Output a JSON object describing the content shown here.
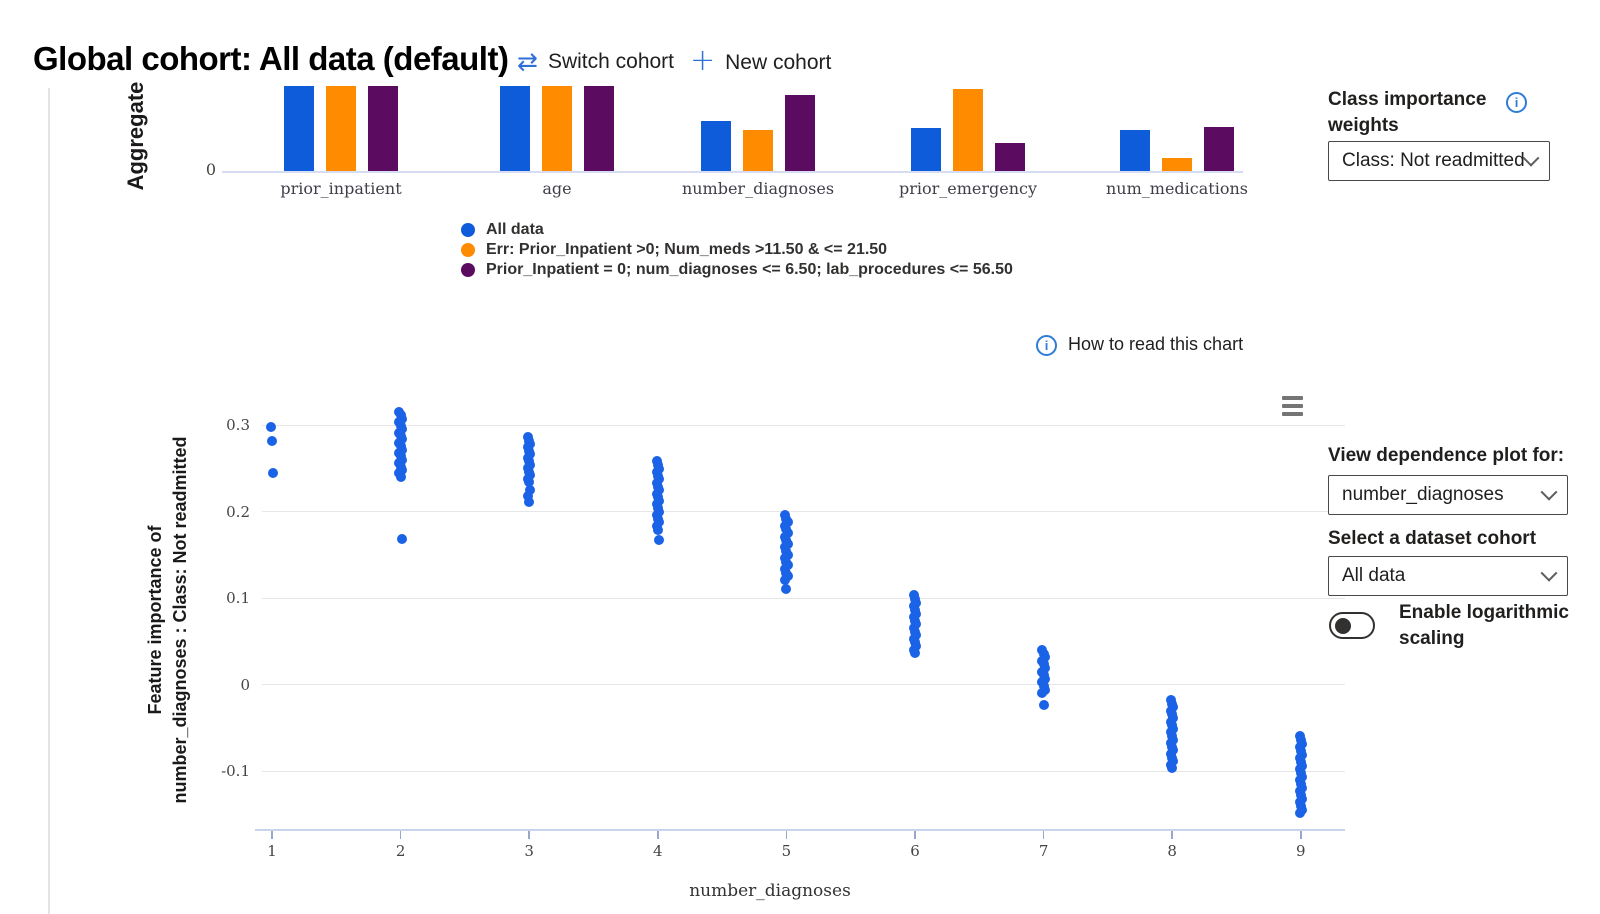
{
  "header": {
    "title": "Global cohort: All data (default)",
    "switch_cohort_label": "Switch cohort",
    "new_cohort_label": "New cohort"
  },
  "class_weights_panel": {
    "label": "Class importance weights",
    "selected": "Class: Not readmitted"
  },
  "how_to_read_label": "How to read this chart",
  "legend": {
    "items": [
      {
        "label": "All data",
        "color": "#0e5cd9"
      },
      {
        "label": "Err: Prior_Inpatient >0; Num_meds >11.50 & <= 21.50",
        "color": "#ff8c00"
      },
      {
        "label": "Prior_Inpatient = 0; num_diagnoses <= 6.50; lab_procedures <= 56.50",
        "color": "#5c0c60"
      }
    ]
  },
  "dependence_panel": {
    "view_label": "View dependence plot for:",
    "feature_selected": "number_diagnoses",
    "cohort_label": "Select a dataset cohort",
    "cohort_selected": "All data",
    "log_toggle_label": "Enable logarithmic scaling",
    "log_toggle_state": "off"
  },
  "chart_data": [
    {
      "type": "bar",
      "title": "Aggregate feature importance per cohort",
      "ylabel": "Aggregate",
      "ytick_labels": [
        "0"
      ],
      "categories": [
        "prior_inpatient",
        "age",
        "number_diagnoses",
        "prior_emergency",
        "num_medications"
      ],
      "series": [
        {
          "name": "All data",
          "color": "#0e5cd9",
          "values_relative": [
            1.0,
            1.0,
            0.59,
            0.51,
            0.48
          ]
        },
        {
          "name": "Err: Prior_Inpatient >0; Num_meds >11.50 & <= 21.50",
          "color": "#ff8c00",
          "values_relative": [
            1.0,
            1.0,
            0.48,
            0.97,
            0.15
          ]
        },
        {
          "name": "Prior_Inpatient = 0; num_diagnoses <= 6.50; lab_procedures <= 56.50",
          "color": "#5c0c60",
          "values_relative": [
            1.0,
            1.0,
            0.89,
            0.33,
            0.52
          ]
        }
      ],
      "note": "bars for prior_inpatient and age are clipped by the top edge of the visible plot area"
    },
    {
      "type": "scatter",
      "xlabel": "number_diagnoses",
      "ylabel_line1": "Feature importance of",
      "ylabel_line2": "number_diagnoses : Class: Not readmitted",
      "marker_color": "#1a62e6",
      "xticks": [
        1,
        2,
        3,
        4,
        5,
        6,
        7,
        8,
        9
      ],
      "yticks": [
        0.3,
        0.2,
        0.1,
        0,
        -0.1
      ],
      "ylim": [
        -0.17,
        0.33
      ],
      "legend_position": "none",
      "grid": true,
      "clusters": [
        {
          "x": 1,
          "points": [
            0.298,
            0.282,
            0.245
          ]
        },
        {
          "x": 2,
          "min": 0.24,
          "max": 0.315,
          "count": 20,
          "extra": [
            0.168
          ]
        },
        {
          "x": 3,
          "min": 0.234,
          "max": 0.286,
          "count": 14,
          "extra": [
            0.225,
            0.218,
            0.211
          ]
        },
        {
          "x": 4,
          "min": 0.179,
          "max": 0.258,
          "count": 20,
          "extra": [
            0.167
          ]
        },
        {
          "x": 5,
          "min": 0.121,
          "max": 0.196,
          "count": 19,
          "extra": [
            0.11
          ]
        },
        {
          "x": 6,
          "min": 0.036,
          "max": 0.103,
          "count": 17
        },
        {
          "x": 7,
          "min": -0.01,
          "max": 0.04,
          "count": 13,
          "extra": [
            -0.024
          ]
        },
        {
          "x": 8,
          "min": -0.097,
          "max": -0.018,
          "count": 20
        },
        {
          "x": 9,
          "min": -0.149,
          "max": -0.06,
          "count": 22
        }
      ]
    }
  ]
}
